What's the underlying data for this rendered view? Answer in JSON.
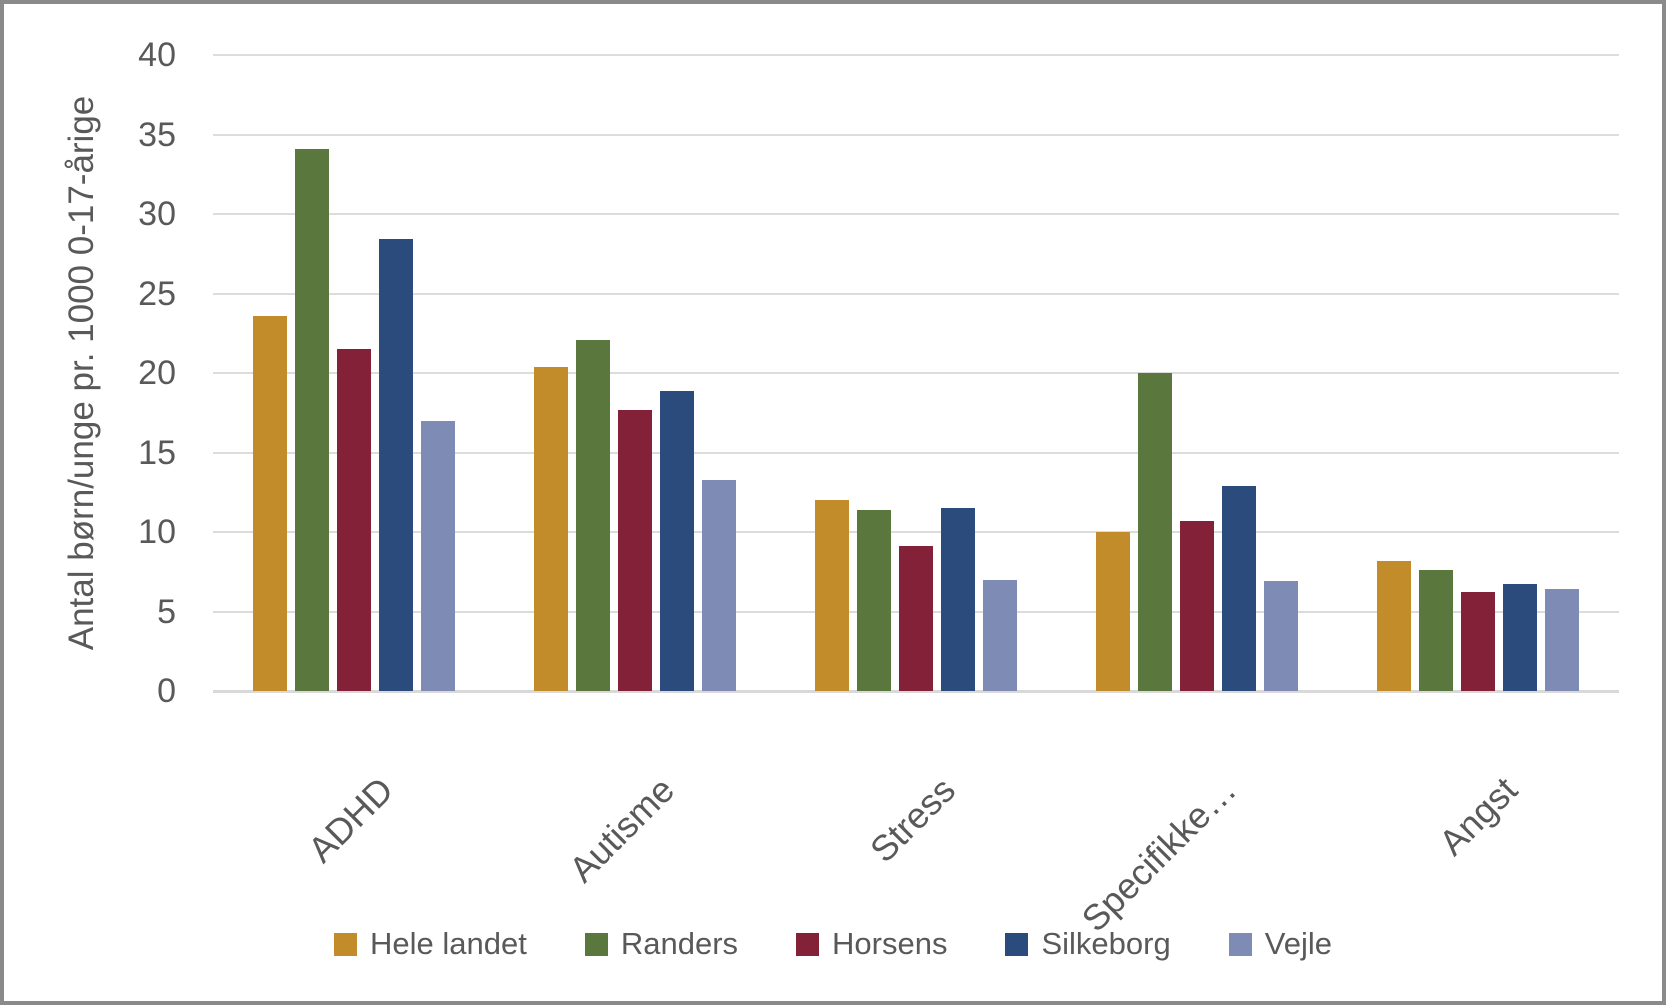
{
  "chart_data": {
    "type": "bar",
    "title": "",
    "ylabel": "Antal børn/unge pr. 1000 0-17-årige",
    "xlabel": "",
    "ylim": [
      0,
      40
    ],
    "yticks": [
      0,
      5,
      10,
      15,
      20,
      25,
      30,
      35,
      40
    ],
    "grid": "horizontal",
    "legend_position": "bottom",
    "categories": [
      "ADHD",
      "Autisme",
      "Stress",
      "Specifikke…",
      "Angst"
    ],
    "series": [
      {
        "name": "Hele landet",
        "color": "#C38C2A",
        "values": [
          23.6,
          20.4,
          12.0,
          10.0,
          8.2
        ]
      },
      {
        "name": "Randers",
        "color": "#5A783E",
        "values": [
          34.1,
          22.1,
          11.4,
          20.0,
          7.6
        ]
      },
      {
        "name": "Horsens",
        "color": "#832138",
        "values": [
          21.5,
          17.7,
          9.1,
          10.7,
          6.2
        ]
      },
      {
        "name": "Silkeborg",
        "color": "#2A4B7C",
        "values": [
          28.4,
          18.9,
          11.5,
          12.9,
          6.7
        ]
      },
      {
        "name": "Vejle",
        "color": "#7E8BB4",
        "values": [
          17.0,
          13.3,
          7.0,
          6.9,
          6.4
        ]
      }
    ]
  },
  "style": {
    "frame_border_color": "#8A8A8A",
    "background_color": "#FFFFFF",
    "gridline_color": "#DCDCDC",
    "axis_line_color": "#D9D9D9",
    "text_color": "#595959"
  }
}
